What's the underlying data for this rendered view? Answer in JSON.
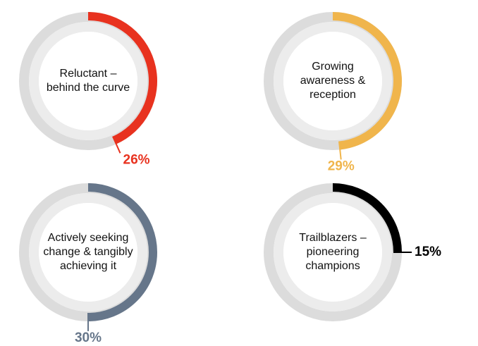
{
  "chart_data": [
    {
      "type": "gauge",
      "title": "Reluctant – behind the curve",
      "values": [
        26
      ],
      "value_labels": [
        "26%"
      ],
      "color": "#e8321f",
      "ylim": [
        0,
        60
      ]
    },
    {
      "type": "gauge",
      "title": "Growing awareness & reception",
      "values": [
        29
      ],
      "value_labels": [
        "29%"
      ],
      "color": "#f0b54c",
      "ylim": [
        0,
        60
      ]
    },
    {
      "type": "gauge",
      "title": "Actively seeking change & tangibly achieving it",
      "values": [
        30
      ],
      "value_labels": [
        "30%"
      ],
      "color": "#66768a",
      "ylim": [
        0,
        60
      ]
    },
    {
      "type": "gauge",
      "title": "Trailblazers – pioneering champions",
      "values": [
        15
      ],
      "value_labels": [
        "15%"
      ],
      "color": "#000000",
      "ylim": [
        0,
        60
      ]
    }
  ]
}
